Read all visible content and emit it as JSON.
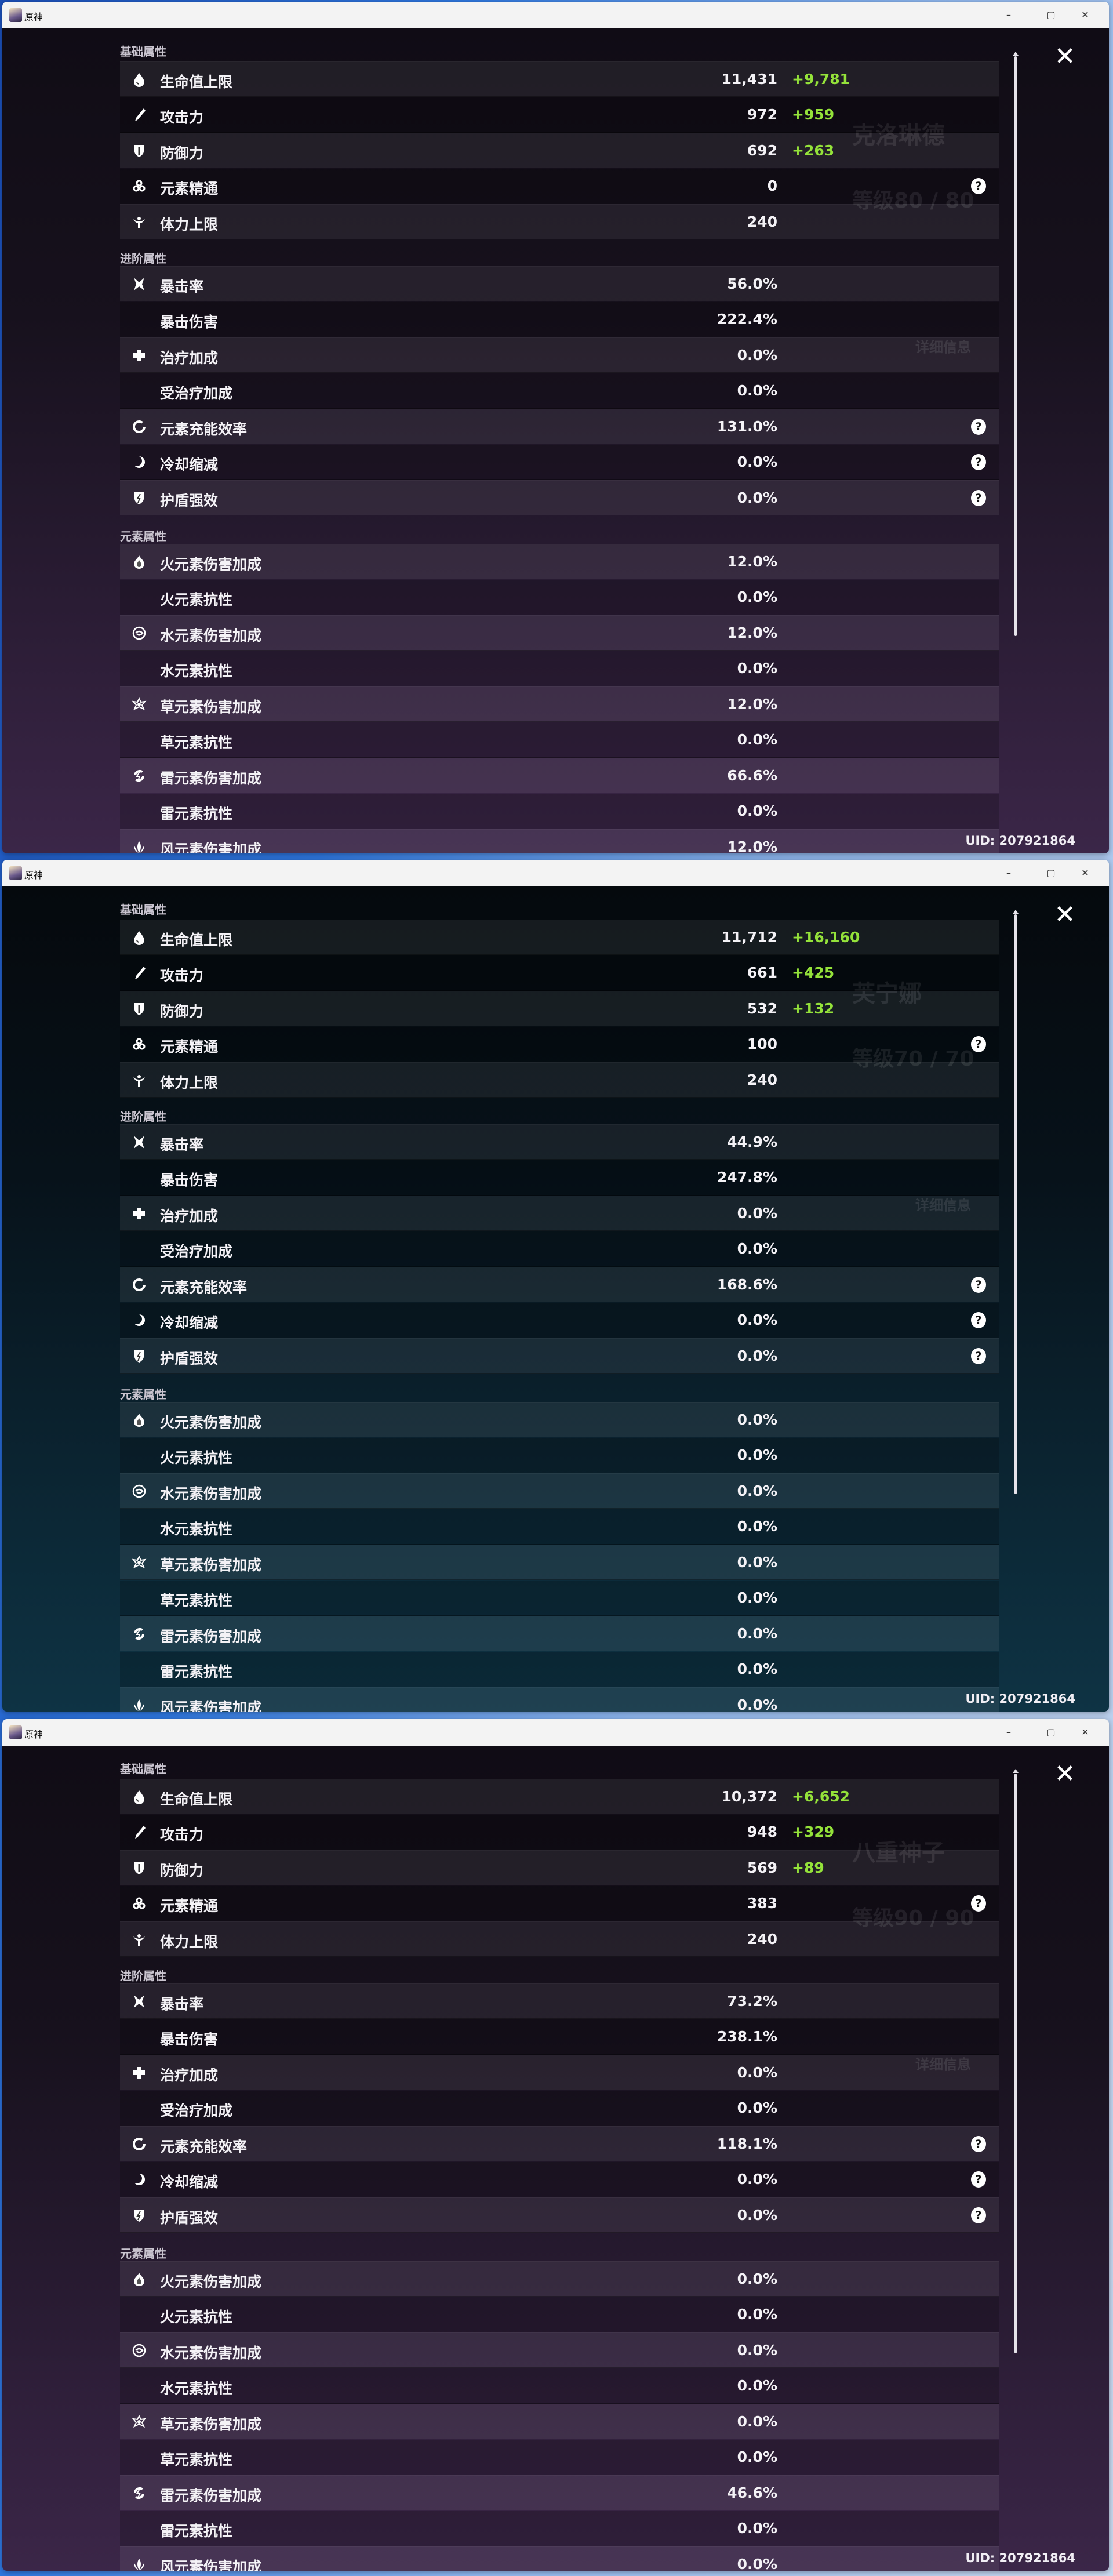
{
  "app_title": "原神",
  "window_buttons": {
    "minimize": "–",
    "maximize": "▢",
    "close": "✕"
  },
  "panel_close": "✕",
  "help_glyph": "?",
  "colors": {
    "bonus": "#94e23a",
    "purple_theme": "#3b2648",
    "teal_theme": "#0e3344"
  },
  "windows": [
    {
      "theme": "purple",
      "ghost": {
        "name": "克洛琳德",
        "level": "等级80 / 80",
        "detail": "详细信息"
      },
      "uid": "UID: 207921864",
      "sections": [
        {
          "title": "基础属性",
          "rows": [
            {
              "icon": "hp-drop-icon",
              "label": "生命值上限",
              "value": "11,431",
              "bonus": "+9,781"
            },
            {
              "icon": "sword-icon",
              "label": "攻击力",
              "value": "972",
              "bonus": "+959"
            },
            {
              "icon": "shield-icon",
              "label": "防御力",
              "value": "692",
              "bonus": "+263"
            },
            {
              "icon": "elemental-mastery-icon",
              "label": "元素精通",
              "value": "0",
              "help": true
            },
            {
              "icon": "stamina-icon",
              "label": "体力上限",
              "value": "240"
            }
          ]
        },
        {
          "title": "进阶属性",
          "rows": [
            {
              "icon": "crit-icon",
              "label": "暴击率",
              "value": "56.0%"
            },
            {
              "label": "暴击伤害",
              "value": "222.4%"
            },
            {
              "icon": "healing-cross-icon",
              "label": "治疗加成",
              "value": "0.0%"
            },
            {
              "label": "受治疗加成",
              "value": "0.0%"
            },
            {
              "icon": "energy-recharge-icon",
              "label": "元素充能效率",
              "value": "131.0%",
              "help": true
            },
            {
              "icon": "cooldown-icon",
              "label": "冷却缩减",
              "value": "0.0%",
              "help": true
            },
            {
              "icon": "shield-strength-icon",
              "label": "护盾强效",
              "value": "0.0%",
              "help": true
            }
          ]
        },
        {
          "title": "元素属性",
          "rows": [
            {
              "icon": "pyro-icon",
              "label": "火元素伤害加成",
              "value": "12.0%"
            },
            {
              "label": "火元素抗性",
              "value": "0.0%"
            },
            {
              "icon": "hydro-icon",
              "label": "水元素伤害加成",
              "value": "12.0%"
            },
            {
              "label": "水元素抗性",
              "value": "0.0%"
            },
            {
              "icon": "dendro-icon",
              "label": "草元素伤害加成",
              "value": "12.0%"
            },
            {
              "label": "草元素抗性",
              "value": "0.0%"
            },
            {
              "icon": "electro-icon",
              "label": "雷元素伤害加成",
              "value": "66.6%"
            },
            {
              "label": "雷元素抗性",
              "value": "0.0%"
            },
            {
              "icon": "anemo-icon",
              "label": "风元素伤害加成",
              "value": "12.0%"
            }
          ]
        }
      ]
    },
    {
      "theme": "teal",
      "ghost": {
        "name": "芙宁娜",
        "level": "等级70 / 70",
        "detail": "详细信息"
      },
      "uid": "UID: 207921864",
      "sections": [
        {
          "title": "基础属性",
          "rows": [
            {
              "icon": "hp-drop-icon",
              "label": "生命值上限",
              "value": "11,712",
              "bonus": "+16,160"
            },
            {
              "icon": "sword-icon",
              "label": "攻击力",
              "value": "661",
              "bonus": "+425"
            },
            {
              "icon": "shield-icon",
              "label": "防御力",
              "value": "532",
              "bonus": "+132"
            },
            {
              "icon": "elemental-mastery-icon",
              "label": "元素精通",
              "value": "100",
              "help": true
            },
            {
              "icon": "stamina-icon",
              "label": "体力上限",
              "value": "240"
            }
          ]
        },
        {
          "title": "进阶属性",
          "rows": [
            {
              "icon": "crit-icon",
              "label": "暴击率",
              "value": "44.9%"
            },
            {
              "label": "暴击伤害",
              "value": "247.8%"
            },
            {
              "icon": "healing-cross-icon",
              "label": "治疗加成",
              "value": "0.0%"
            },
            {
              "label": "受治疗加成",
              "value": "0.0%"
            },
            {
              "icon": "energy-recharge-icon",
              "label": "元素充能效率",
              "value": "168.6%",
              "help": true
            },
            {
              "icon": "cooldown-icon",
              "label": "冷却缩减",
              "value": "0.0%",
              "help": true
            },
            {
              "icon": "shield-strength-icon",
              "label": "护盾强效",
              "value": "0.0%",
              "help": true
            }
          ]
        },
        {
          "title": "元素属性",
          "rows": [
            {
              "icon": "pyro-icon",
              "label": "火元素伤害加成",
              "value": "0.0%"
            },
            {
              "label": "火元素抗性",
              "value": "0.0%"
            },
            {
              "icon": "hydro-icon",
              "label": "水元素伤害加成",
              "value": "0.0%"
            },
            {
              "label": "水元素抗性",
              "value": "0.0%"
            },
            {
              "icon": "dendro-icon",
              "label": "草元素伤害加成",
              "value": "0.0%"
            },
            {
              "label": "草元素抗性",
              "value": "0.0%"
            },
            {
              "icon": "electro-icon",
              "label": "雷元素伤害加成",
              "value": "0.0%"
            },
            {
              "label": "雷元素抗性",
              "value": "0.0%"
            },
            {
              "icon": "anemo-icon",
              "label": "风元素伤害加成",
              "value": "0.0%"
            }
          ]
        }
      ]
    },
    {
      "theme": "purple",
      "ghost": {
        "name": "八重神子",
        "level": "等级90 / 90",
        "detail": "详细信息"
      },
      "uid": "UID: 207921864",
      "sections": [
        {
          "title": "基础属性",
          "rows": [
            {
              "icon": "hp-drop-icon",
              "label": "生命值上限",
              "value": "10,372",
              "bonus": "+6,652"
            },
            {
              "icon": "sword-icon",
              "label": "攻击力",
              "value": "948",
              "bonus": "+329"
            },
            {
              "icon": "shield-icon",
              "label": "防御力",
              "value": "569",
              "bonus": "+89"
            },
            {
              "icon": "elemental-mastery-icon",
              "label": "元素精通",
              "value": "383",
              "help": true
            },
            {
              "icon": "stamina-icon",
              "label": "体力上限",
              "value": "240"
            }
          ]
        },
        {
          "title": "进阶属性",
          "rows": [
            {
              "icon": "crit-icon",
              "label": "暴击率",
              "value": "73.2%"
            },
            {
              "label": "暴击伤害",
              "value": "238.1%"
            },
            {
              "icon": "healing-cross-icon",
              "label": "治疗加成",
              "value": "0.0%"
            },
            {
              "label": "受治疗加成",
              "value": "0.0%"
            },
            {
              "icon": "energy-recharge-icon",
              "label": "元素充能效率",
              "value": "118.1%",
              "help": true
            },
            {
              "icon": "cooldown-icon",
              "label": "冷却缩减",
              "value": "0.0%",
              "help": true
            },
            {
              "icon": "shield-strength-icon",
              "label": "护盾强效",
              "value": "0.0%",
              "help": true
            }
          ]
        },
        {
          "title": "元素属性",
          "rows": [
            {
              "icon": "pyro-icon",
              "label": "火元素伤害加成",
              "value": "0.0%"
            },
            {
              "label": "火元素抗性",
              "value": "0.0%"
            },
            {
              "icon": "hydro-icon",
              "label": "水元素伤害加成",
              "value": "0.0%"
            },
            {
              "label": "水元素抗性",
              "value": "0.0%"
            },
            {
              "icon": "dendro-icon",
              "label": "草元素伤害加成",
              "value": "0.0%"
            },
            {
              "label": "草元素抗性",
              "value": "0.0%"
            },
            {
              "icon": "electro-icon",
              "label": "雷元素伤害加成",
              "value": "46.6%"
            },
            {
              "label": "雷元素抗性",
              "value": "0.0%"
            },
            {
              "icon": "anemo-icon",
              "label": "风元素伤害加成",
              "value": "0.0%"
            }
          ]
        }
      ]
    }
  ]
}
